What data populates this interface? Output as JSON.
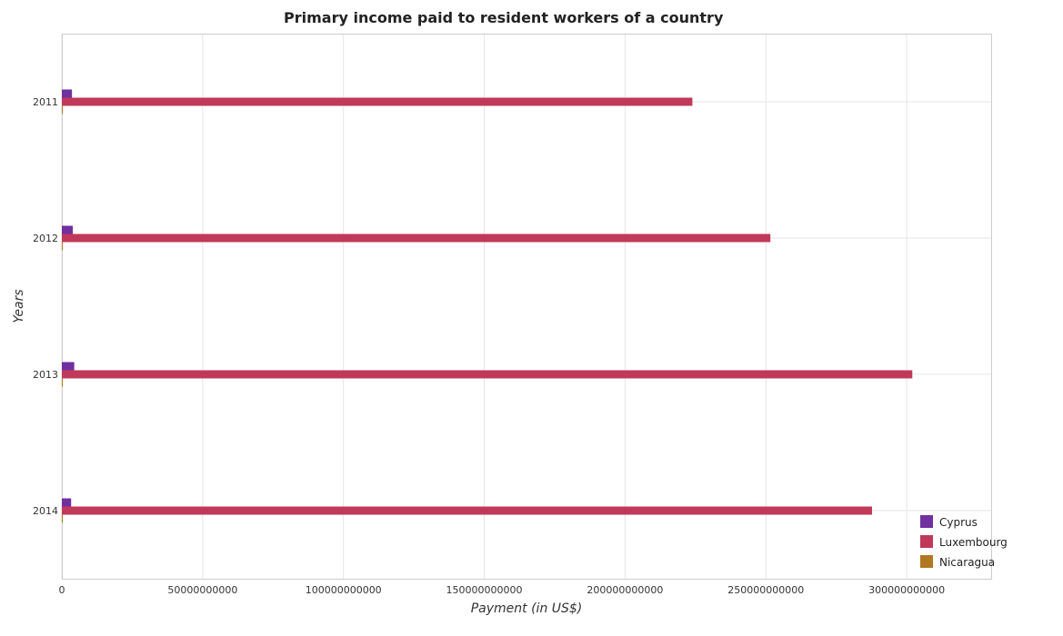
{
  "chart_data": {
    "type": "bar",
    "orientation": "horizontal",
    "title": "Primary income paid to resident workers of a country",
    "xlabel": "Payment (in US$)",
    "ylabel": "Years",
    "categories": [
      "2011",
      "2012",
      "2013",
      "2014"
    ],
    "xlim": [
      0,
      330000000000
    ],
    "xticks": [
      0,
      50000000000,
      100000000000,
      150000000000,
      200000000000,
      250000000000,
      300000000000
    ],
    "xtick_labels": [
      "0",
      "50000000000",
      "100000000000",
      "150000000000",
      "200000000000",
      "250000000000",
      "300000000000"
    ],
    "grid": true,
    "legend_position": "bottom-right",
    "series": [
      {
        "name": "Cyprus",
        "color": "#7030a0",
        "values": [
          3600000000,
          3900000000,
          4400000000,
          3300000000
        ]
      },
      {
        "name": "Luxembourg",
        "color": "#c0395a",
        "values": [
          223900000000,
          251600000000,
          302000000000,
          287700000000
        ]
      },
      {
        "name": "Nicaragua",
        "color": "#b07820",
        "values": [
          250000000,
          300000000,
          300000000,
          300000000
        ]
      }
    ]
  }
}
